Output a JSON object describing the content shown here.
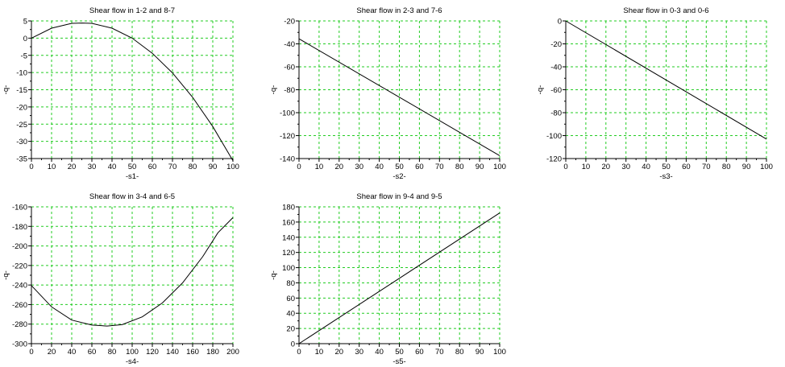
{
  "chart_data": [
    {
      "type": "line",
      "title": "Shear flow in 1-2 and 8-7",
      "xlabel": "-s1-",
      "ylabel": "-q-",
      "xlim": [
        0,
        100
      ],
      "ylim": [
        -35,
        5
      ],
      "xticks": [
        0,
        10,
        20,
        30,
        40,
        50,
        60,
        70,
        80,
        90,
        100
      ],
      "yticks": [
        5,
        0,
        -5,
        -10,
        -15,
        -20,
        -25,
        -30,
        -35
      ],
      "grid": true,
      "series": [
        {
          "name": "q",
          "x": [
            0,
            10,
            20,
            25,
            30,
            40,
            50,
            60,
            70,
            80,
            90,
            100
          ],
          "y": [
            0,
            2.9,
            4.3,
            4.4,
            4.3,
            2.9,
            0,
            -4.4,
            -10.1,
            -17.2,
            -25.7,
            -35.6
          ]
        }
      ]
    },
    {
      "type": "line",
      "title": "Shear flow in 2-3 and 7-6",
      "xlabel": "-s2-",
      "ylabel": "-q-",
      "xlim": [
        0,
        100
      ],
      "ylim": [
        -140,
        -20
      ],
      "xticks": [
        0,
        10,
        20,
        30,
        40,
        50,
        60,
        70,
        80,
        90,
        100
      ],
      "yticks": [
        -20,
        -40,
        -60,
        -80,
        -100,
        -120,
        -140
      ],
      "grid": true,
      "series": [
        {
          "name": "q",
          "x": [
            0,
            100
          ],
          "y": [
            -35.6,
            -137.5
          ]
        }
      ]
    },
    {
      "type": "line",
      "title": "Shear flow in 0-3 and 0-6",
      "xlabel": "-s3-",
      "ylabel": "-q-",
      "xlim": [
        0,
        100
      ],
      "ylim": [
        -120,
        0
      ],
      "xticks": [
        0,
        10,
        20,
        30,
        40,
        50,
        60,
        70,
        80,
        90,
        100
      ],
      "yticks": [
        0,
        -20,
        -40,
        -60,
        -80,
        -100,
        -120
      ],
      "grid": true,
      "series": [
        {
          "name": "q",
          "x": [
            0,
            100
          ],
          "y": [
            0,
            -103
          ]
        }
      ]
    },
    {
      "type": "line",
      "title": "Shear flow in 3-4 and 6-5",
      "xlabel": "-s4-",
      "ylabel": "-q-",
      "xlim": [
        0,
        200
      ],
      "ylim": [
        -300,
        -160
      ],
      "xticks": [
        0,
        20,
        40,
        60,
        80,
        100,
        120,
        140,
        160,
        180,
        200
      ],
      "yticks": [
        -160,
        -180,
        -200,
        -220,
        -240,
        -260,
        -280,
        -300
      ],
      "grid": true,
      "series": [
        {
          "name": "q",
          "x": [
            0,
            20,
            40,
            60,
            75,
            90,
            110,
            130,
            150,
            170,
            185,
            200
          ],
          "y": [
            -240.5,
            -262.4,
            -275.9,
            -281,
            -282,
            -280.6,
            -272.6,
            -258.3,
            -237.8,
            -211,
            -186.6,
            -171
          ]
        }
      ]
    },
    {
      "type": "line",
      "title": "Shear flow in 9-4 and 9-5",
      "xlabel": "-s5-",
      "ylabel": "-q-",
      "xlim": [
        0,
        100
      ],
      "ylim": [
        0,
        180
      ],
      "xticks": [
        0,
        10,
        20,
        30,
        40,
        50,
        60,
        70,
        80,
        90,
        100
      ],
      "yticks": [
        180,
        160,
        140,
        120,
        100,
        80,
        60,
        40,
        20,
        0
      ],
      "grid": true,
      "series": [
        {
          "name": "q",
          "x": [
            0,
            100
          ],
          "y": [
            0,
            172
          ]
        }
      ]
    }
  ]
}
